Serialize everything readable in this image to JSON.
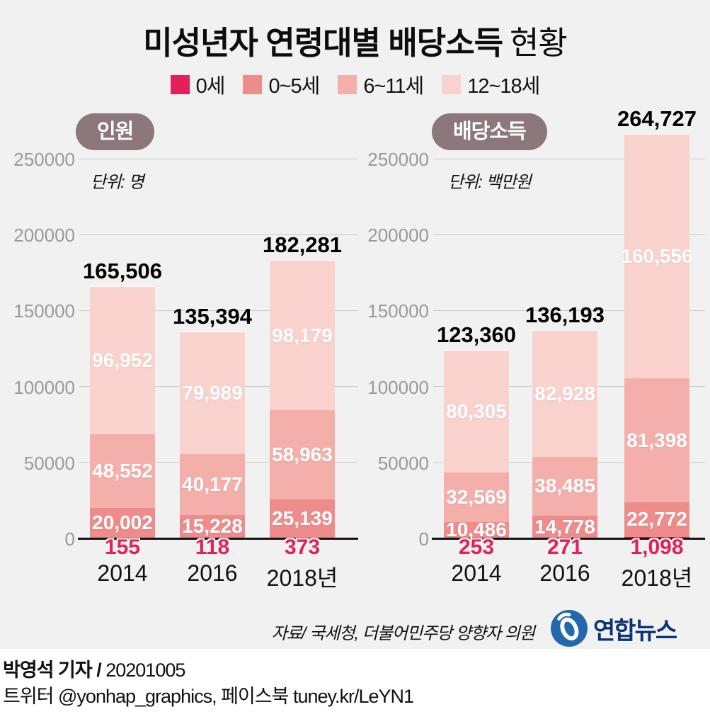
{
  "title": {
    "main": "미성년자 연령대별 배당소득",
    "suffix": "현황"
  },
  "legend": [
    {
      "label": "0세",
      "color": "#e2205a"
    },
    {
      "label": "0~5세",
      "color": "#ee8c8c"
    },
    {
      "label": "6~11세",
      "color": "#f4afaa"
    },
    {
      "label": "12~18세",
      "color": "#f9d2cd"
    }
  ],
  "chart_data": [
    {
      "type": "bar",
      "stacked": true,
      "badge": "인원",
      "unit": "단위: 명",
      "categories": [
        "2014",
        "2016",
        "2018년"
      ],
      "series": [
        {
          "name": "0세",
          "color": "#e2205a",
          "values": [
            155,
            118,
            373
          ]
        },
        {
          "name": "0~5세",
          "color": "#ee8c8c",
          "values": [
            20002,
            15228,
            25139
          ]
        },
        {
          "name": "6~11세",
          "color": "#f4afaa",
          "values": [
            48552,
            40177,
            58963
          ]
        },
        {
          "name": "12~18세",
          "color": "#f9d2cd",
          "values": [
            96952,
            79989,
            98179
          ]
        }
      ],
      "totals": [
        165506,
        135394,
        182281
      ],
      "ylim": [
        0,
        250000
      ],
      "yticks": [
        0,
        50000,
        100000,
        150000,
        200000,
        250000
      ],
      "grid": true,
      "legend_position": "top"
    },
    {
      "type": "bar",
      "stacked": true,
      "badge": "배당소득",
      "unit": "단위: 백만원",
      "categories": [
        "2014",
        "2016",
        "2018년"
      ],
      "series": [
        {
          "name": "0세",
          "color": "#e2205a",
          "values": [
            253,
            271,
            1098
          ]
        },
        {
          "name": "0~5세",
          "color": "#ee8c8c",
          "values": [
            10486,
            14778,
            22772
          ]
        },
        {
          "name": "6~11세",
          "color": "#f4afaa",
          "values": [
            32569,
            38485,
            81398
          ]
        },
        {
          "name": "12~18세",
          "color": "#f9d2cd",
          "values": [
            80305,
            82928,
            160556
          ]
        }
      ],
      "totals": [
        123360,
        136193,
        264727
      ],
      "ylim": [
        0,
        250000
      ],
      "yticks": [
        0,
        50000,
        100000,
        150000,
        200000,
        250000
      ],
      "grid": true,
      "legend_position": "top"
    }
  ],
  "footer": {
    "source": "자료/ 국세청, 더불어민주당 양향자 의원",
    "logo_text": "연합뉴스",
    "credit_name": "박영석 기자 /",
    "credit_date": "20201005",
    "contact": "트위터 @yonhap_graphics, 페이스북 tuney.kr/LeYN1"
  },
  "colors": {
    "page_background": "#f1f1f1",
    "value_label_red": "#e2205a",
    "badge_background": "#8c777b",
    "gridline": "#c9c9c9",
    "logo_blue": "#2268ae",
    "logo_navy": "#0e3470"
  }
}
